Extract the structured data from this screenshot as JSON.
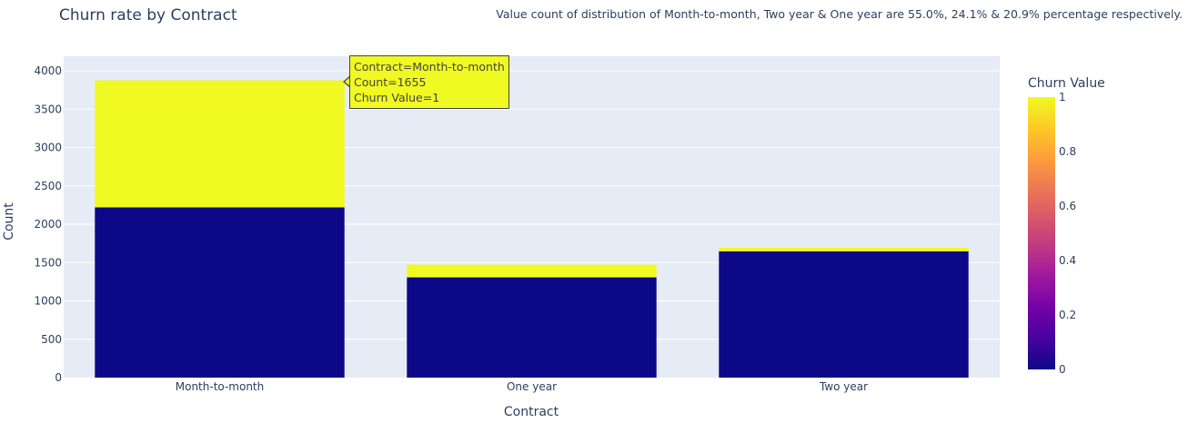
{
  "chart_data": {
    "type": "bar",
    "stacked": true,
    "title": "Churn rate by Contract",
    "annotation": "Value count of distribution of Month-to-month, Two year & One year are 55.0%, 24.1% & 20.9% percentage respectively.",
    "xlabel": "Contract",
    "ylabel": "Count",
    "categories": [
      "Month-to-month",
      "One year",
      "Two year"
    ],
    "series": [
      {
        "churn_value": 0,
        "color": "#0d0887",
        "values": [
          2220,
          1307,
          1647
        ]
      },
      {
        "churn_value": 1,
        "color": "#f0f921",
        "values": [
          1655,
          166,
          48
        ]
      }
    ],
    "ylim": [
      0,
      4000
    ],
    "yticks": [
      0,
      500,
      1000,
      1500,
      2000,
      2500,
      3000,
      3500,
      4000
    ],
    "colorbar": {
      "title": "Churn Value",
      "ticks": [
        "0",
        "0.2",
        "0.4",
        "0.6",
        "0.8",
        "1"
      ],
      "colorscale": [
        "#0d0887",
        "#46039f",
        "#7201a8",
        "#9c179e",
        "#bd3786",
        "#d8576b",
        "#ed7953",
        "#fb9f3a",
        "#fdca26",
        "#f0f921"
      ]
    },
    "tooltip": {
      "line1": "Contract=Month-to-month",
      "line2": "Count=1655",
      "line3": "Churn Value=1"
    },
    "plot_bg": "#e5ecf6",
    "grid": true,
    "legend": "colorbar-right"
  }
}
